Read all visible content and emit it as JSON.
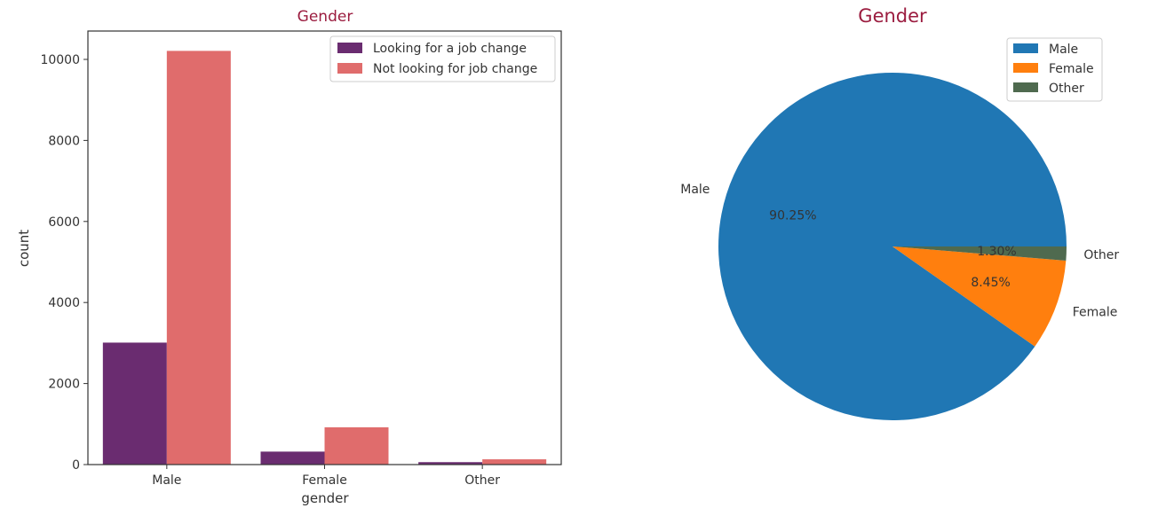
{
  "chart_data": [
    {
      "type": "bar",
      "title": "Gender",
      "xlabel": "gender",
      "ylabel": "count",
      "categories": [
        "Male",
        "Female",
        "Other"
      ],
      "series": [
        {
          "name": "Looking for a job change",
          "values": [
            3010,
            320,
            60
          ],
          "color": "#6a2c70"
        },
        {
          "name": "Not looking for job change",
          "values": [
            10210,
            920,
            130
          ],
          "color": "#e06c6c"
        }
      ],
      "ylim": [
        0,
        10700
      ],
      "yticks": [
        0,
        2000,
        4000,
        6000,
        8000,
        10000
      ],
      "legend": "top-right",
      "grid": false,
      "title_color": "#9b1c3f"
    },
    {
      "type": "pie",
      "title": "Gender",
      "labels": [
        "Male",
        "Female",
        "Other"
      ],
      "values": [
        90.25,
        8.45,
        1.3
      ],
      "pct_labels": [
        "90.25%",
        "8.45%",
        "1.30%"
      ],
      "colors": [
        "#2077b4",
        "#ff7f0e",
        "#4f6a4f"
      ],
      "legend": "top-right",
      "title_color": "#9b1c3f"
    }
  ]
}
